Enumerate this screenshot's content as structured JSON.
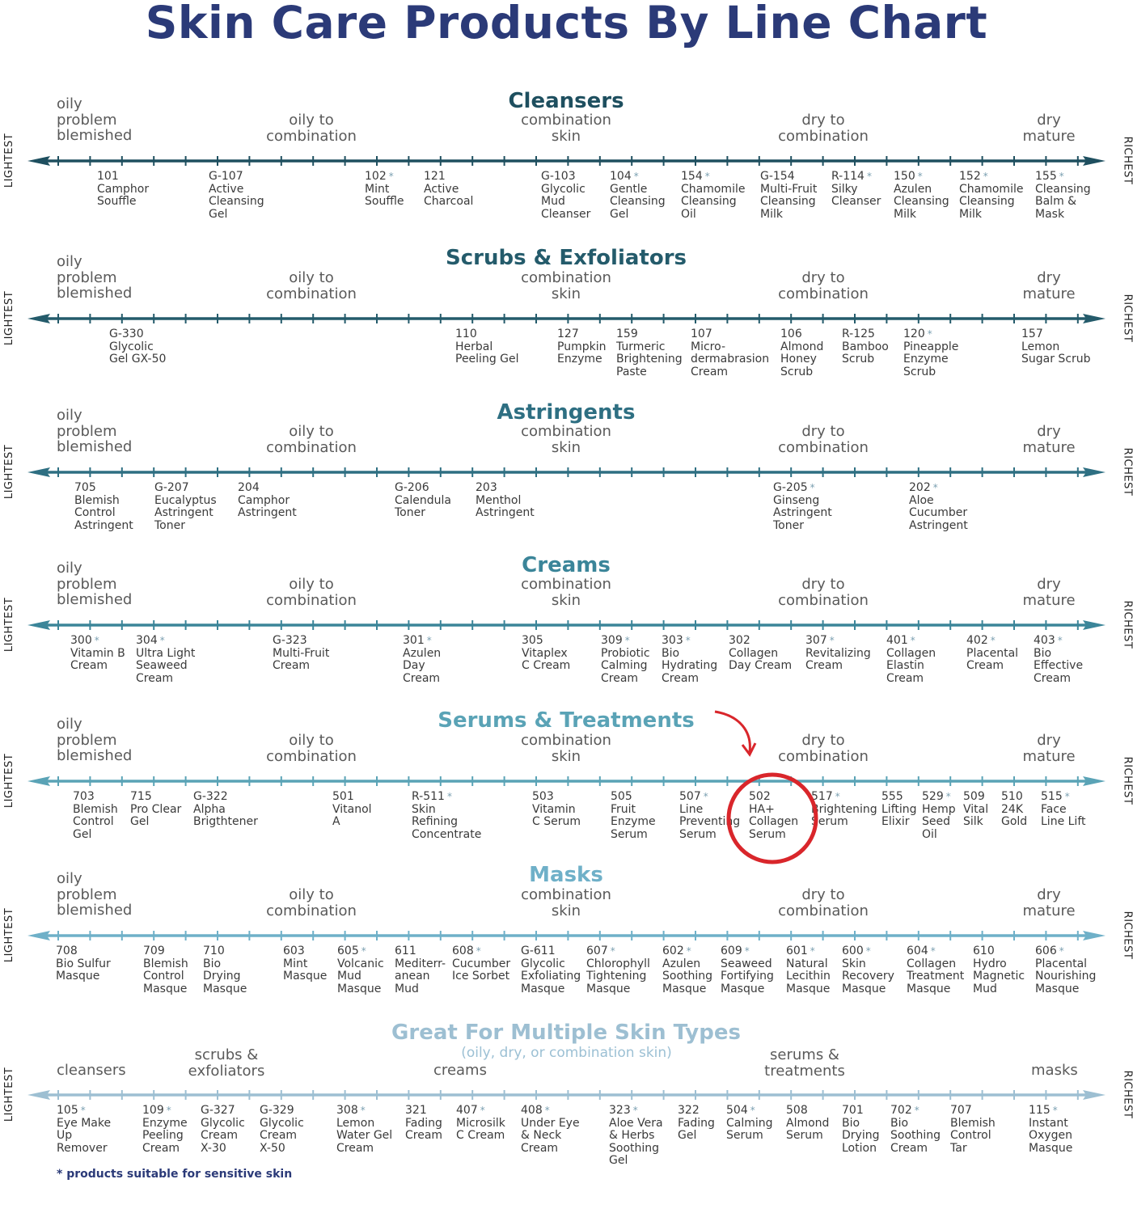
{
  "title": "Skin Care Products By Line Chart",
  "edge_labels": {
    "left": "LIGHTEST",
    "right": "RICHEST"
  },
  "skin_types": {
    "oily": [
      "oily",
      "problem",
      "blemished"
    ],
    "oily_combo": [
      "oily to",
      "combination"
    ],
    "combo": [
      "combination",
      "skin"
    ],
    "dry_combo": [
      "dry to",
      "combination"
    ],
    "dry": [
      "dry",
      "mature"
    ]
  },
  "sections": [
    {
      "title": "Cleansers",
      "color": "#1e4f5f",
      "products": [
        {
          "code": "101",
          "star": false,
          "name": [
            "Camphor",
            "Souffle"
          ]
        },
        {
          "code": "G-107",
          "star": false,
          "name": [
            "Active",
            "Cleansing",
            "Gel"
          ]
        },
        {
          "code": "102",
          "star": true,
          "name": [
            "Mint",
            "Souffle"
          ]
        },
        {
          "code": "121",
          "star": false,
          "name": [
            "Active",
            "Charcoal"
          ]
        },
        {
          "code": "G-103",
          "star": false,
          "name": [
            "Glycolic",
            "Mud",
            "Cleanser"
          ]
        },
        {
          "code": "104",
          "star": true,
          "name": [
            "Gentle",
            "Cleansing",
            "Gel"
          ]
        },
        {
          "code": "154",
          "star": true,
          "name": [
            "Chamomile",
            "Cleansing",
            "Oil"
          ]
        },
        {
          "code": "G-154",
          "star": false,
          "name": [
            "Multi-Fruit",
            "Cleansing",
            "Milk"
          ]
        },
        {
          "code": "R-114",
          "star": true,
          "name": [
            "Silky",
            "Cleanser"
          ]
        },
        {
          "code": "150",
          "star": true,
          "name": [
            "Azulen",
            "Cleansing",
            "Milk"
          ]
        },
        {
          "code": "152",
          "star": true,
          "name": [
            "Chamomile",
            "Cleansing",
            "Milk"
          ]
        },
        {
          "code": "155",
          "star": true,
          "name": [
            "Cleansing",
            "Balm &",
            "Mask"
          ]
        }
      ]
    },
    {
      "title": "Scrubs & Exfoliators",
      "color": "#245b6b",
      "products": [
        {
          "code": "G-330",
          "star": false,
          "name": [
            "Glycolic",
            "Gel GX-50"
          ]
        },
        {
          "code": "110",
          "star": false,
          "name": [
            "Herbal",
            "Peeling Gel"
          ]
        },
        {
          "code": "127",
          "star": false,
          "name": [
            "Pumpkin",
            "Enzyme"
          ]
        },
        {
          "code": "159",
          "star": false,
          "name": [
            "Turmeric",
            "Brightening",
            "Paste"
          ]
        },
        {
          "code": "107",
          "star": false,
          "name": [
            "Micro-",
            "dermabrasion",
            "Cream"
          ]
        },
        {
          "code": "106",
          "star": false,
          "name": [
            "Almond",
            "Honey",
            "Scrub"
          ]
        },
        {
          "code": "R-125",
          "star": false,
          "name": [
            "Bamboo",
            "Scrub"
          ]
        },
        {
          "code": "120",
          "star": true,
          "name": [
            "Pineapple",
            "Enzyme",
            "Scrub"
          ]
        },
        {
          "code": "157",
          "star": false,
          "name": [
            "Lemon",
            "Sugar Scrub"
          ]
        }
      ]
    },
    {
      "title": "Astringents",
      "color": "#2e6f82",
      "products": [
        {
          "code": "705",
          "star": false,
          "name": [
            "Blemish",
            "Control",
            "Astringent"
          ]
        },
        {
          "code": "G-207",
          "star": false,
          "name": [
            "Eucalyptus",
            "Astringent",
            "Toner"
          ]
        },
        {
          "code": "204",
          "star": false,
          "name": [
            "Camphor",
            "Astringent"
          ]
        },
        {
          "code": "G-206",
          "star": false,
          "name": [
            "Calendula",
            "Toner"
          ]
        },
        {
          "code": "203",
          "star": false,
          "name": [
            "Menthol",
            "Astringent"
          ]
        },
        {
          "code": "G-205",
          "star": true,
          "name": [
            "Ginseng",
            "Astringent",
            "Toner"
          ]
        },
        {
          "code": "202",
          "star": true,
          "name": [
            "Aloe",
            "Cucumber",
            "Astringent"
          ]
        }
      ]
    },
    {
      "title": "Creams",
      "color": "#3b8599",
      "products": [
        {
          "code": "300",
          "star": true,
          "name": [
            "Vitamin B",
            "Cream"
          ]
        },
        {
          "code": "304",
          "star": true,
          "name": [
            "Ultra Light",
            "Seaweed",
            "Cream"
          ]
        },
        {
          "code": "G-323",
          "star": false,
          "name": [
            "Multi-Fruit",
            "Cream"
          ]
        },
        {
          "code": "301",
          "star": true,
          "name": [
            "Azulen",
            "Day",
            "Cream"
          ]
        },
        {
          "code": "305",
          "star": false,
          "name": [
            "Vitaplex",
            "C Cream"
          ]
        },
        {
          "code": "309",
          "star": true,
          "name": [
            "Probiotic",
            "Calming",
            "Cream"
          ]
        },
        {
          "code": "303",
          "star": true,
          "name": [
            "Bio",
            "Hydrating",
            "Cream"
          ]
        },
        {
          "code": "302",
          "star": false,
          "name": [
            "Collagen",
            "Day Cream"
          ]
        },
        {
          "code": "307",
          "star": true,
          "name": [
            "Revitalizing",
            "Cream"
          ]
        },
        {
          "code": "401",
          "star": true,
          "name": [
            "Collagen",
            "Elastin",
            "Cream"
          ]
        },
        {
          "code": "402",
          "star": true,
          "name": [
            "Placental",
            "Cream"
          ]
        },
        {
          "code": "403",
          "star": true,
          "name": [
            "Bio",
            "Effective",
            "Cream"
          ]
        }
      ]
    },
    {
      "title": "Serums & Treatments",
      "color": "#5aa3b6",
      "products": [
        {
          "code": "703",
          "star": false,
          "name": [
            "Blemish",
            "Control",
            "Gel"
          ]
        },
        {
          "code": "715",
          "star": false,
          "name": [
            "Pro Clear",
            "Gel"
          ]
        },
        {
          "code": "G-322",
          "star": false,
          "name": [
            "Alpha",
            "Brigthtener"
          ]
        },
        {
          "code": "501",
          "star": false,
          "name": [
            "Vitanol",
            "A"
          ]
        },
        {
          "code": "R-511",
          "star": true,
          "name": [
            "Skin",
            "Refining",
            "Concentrate"
          ]
        },
        {
          "code": "503",
          "star": false,
          "name": [
            "Vitamin",
            "C Serum"
          ]
        },
        {
          "code": "505",
          "star": false,
          "name": [
            "Fruit",
            "Enzyme",
            "Serum"
          ]
        },
        {
          "code": "507",
          "star": true,
          "name": [
            "Line",
            "Preventing",
            "Serum"
          ]
        },
        {
          "code": "502",
          "star": false,
          "name": [
            "HA+",
            "Collagen",
            "Serum"
          ]
        },
        {
          "code": "517",
          "star": true,
          "name": [
            "Brightening",
            "Serum"
          ]
        },
        {
          "code": "555",
          "star": false,
          "name": [
            "Lifting",
            "Elixir"
          ]
        },
        {
          "code": "529",
          "star": true,
          "name": [
            "Hemp",
            "Seed",
            "Oil"
          ]
        },
        {
          "code": "509",
          "star": false,
          "name": [
            "Vital",
            "Silk"
          ]
        },
        {
          "code": "510",
          "star": false,
          "name": [
            "24K",
            "Gold"
          ]
        },
        {
          "code": "515",
          "star": true,
          "name": [
            "Face",
            "Line Lift"
          ]
        }
      ]
    },
    {
      "title": "Masks",
      "color": "#6fb0c8",
      "products": [
        {
          "code": "708",
          "star": false,
          "name": [
            "Bio Sulfur",
            "Masque"
          ]
        },
        {
          "code": "709",
          "star": false,
          "name": [
            "Blemish",
            "Control",
            "Masque"
          ]
        },
        {
          "code": "710",
          "star": false,
          "name": [
            "Bio",
            "Drying",
            "Masque"
          ]
        },
        {
          "code": "603",
          "star": false,
          "name": [
            "Mint",
            "Masque"
          ]
        },
        {
          "code": "605",
          "star": true,
          "name": [
            "Volcanic",
            "Mud",
            "Masque"
          ]
        },
        {
          "code": "611",
          "star": false,
          "name": [
            "Mediterr-",
            "anean",
            "Mud"
          ]
        },
        {
          "code": "608",
          "star": true,
          "name": [
            "Cucumber",
            "Ice Sorbet"
          ]
        },
        {
          "code": "G-611",
          "star": false,
          "name": [
            "Glycolic",
            "Exfoliating",
            "Masque"
          ]
        },
        {
          "code": "607",
          "star": true,
          "name": [
            "Chlorophyll",
            "Tightening",
            "Masque"
          ]
        },
        {
          "code": "602",
          "star": true,
          "name": [
            "Azulen",
            "Soothing",
            "Masque"
          ]
        },
        {
          "code": "609",
          "star": true,
          "name": [
            "Seaweed",
            "Fortifying",
            "Masque"
          ]
        },
        {
          "code": "601",
          "star": true,
          "name": [
            "Natural",
            "Lecithin",
            "Masque"
          ]
        },
        {
          "code": "600",
          "star": true,
          "name": [
            "Skin",
            "Recovery",
            "Masque"
          ]
        },
        {
          "code": "604",
          "star": true,
          "name": [
            "Collagen",
            "Treatment",
            "Masque"
          ]
        },
        {
          "code": "610",
          "star": false,
          "name": [
            "Hydro",
            "Magnetic",
            "Mud"
          ]
        },
        {
          "code": "606",
          "star": true,
          "name": [
            "Placental",
            "Nourishing",
            "Masque"
          ]
        }
      ]
    },
    {
      "title": "Great For Multiple Skin Types",
      "color": "#9dbfd2",
      "subtitle": "(oily, dry, or combination skin)",
      "categories": {
        "cleansers": "cleansers",
        "scrubs": [
          "scrubs &",
          "exfoliators"
        ],
        "creams": "creams",
        "serums": [
          "serums &",
          "treatments"
        ],
        "masks": "masks"
      },
      "products": [
        {
          "code": "105",
          "star": true,
          "name": [
            "Eye Make",
            "Up",
            "Remover"
          ]
        },
        {
          "code": "109",
          "star": true,
          "name": [
            "Enzyme",
            "Peeling",
            "Cream"
          ]
        },
        {
          "code": "G-327",
          "star": false,
          "name": [
            "Glycolic",
            "Cream",
            "X-30"
          ]
        },
        {
          "code": "G-329",
          "star": false,
          "name": [
            "Glycolic",
            "Cream",
            "X-50"
          ]
        },
        {
          "code": "308",
          "star": true,
          "name": [
            "Lemon",
            "Water Gel",
            "Cream"
          ]
        },
        {
          "code": "321",
          "star": false,
          "name": [
            "Fading",
            "Cream"
          ]
        },
        {
          "code": "407",
          "star": true,
          "name": [
            "Microsilk",
            "C Cream"
          ]
        },
        {
          "code": "408",
          "star": true,
          "name": [
            "Under Eye",
            "& Neck",
            "Cream"
          ]
        },
        {
          "code": "323",
          "star": true,
          "name": [
            "Aloe Vera",
            "& Herbs",
            "Soothing",
            "Gel"
          ]
        },
        {
          "code": "322",
          "star": false,
          "name": [
            "Fading",
            "Gel"
          ]
        },
        {
          "code": "504",
          "star": true,
          "name": [
            "Calming",
            "Serum"
          ]
        },
        {
          "code": "508",
          "star": false,
          "name": [
            "Almond",
            "Serum"
          ]
        },
        {
          "code": "701",
          "star": false,
          "name": [
            "Bio",
            "Drying",
            "Lotion"
          ]
        },
        {
          "code": "702",
          "star": true,
          "name": [
            "Bio",
            "Soothing",
            "Cream"
          ]
        },
        {
          "code": "707",
          "star": false,
          "name": [
            "Blemish",
            "Control",
            "Tar"
          ]
        },
        {
          "code": "115",
          "star": true,
          "name": [
            "Instant",
            "Oxygen",
            "Masque"
          ]
        }
      ]
    }
  ],
  "highlight": {
    "product_code": "502",
    "color": "#d9262b"
  },
  "footnote": "* products suitable for sensitive skin",
  "colors": {
    "title": "#2b3a78",
    "skin_label": "#5a5a5a",
    "product_text": "#3a3a3a"
  }
}
